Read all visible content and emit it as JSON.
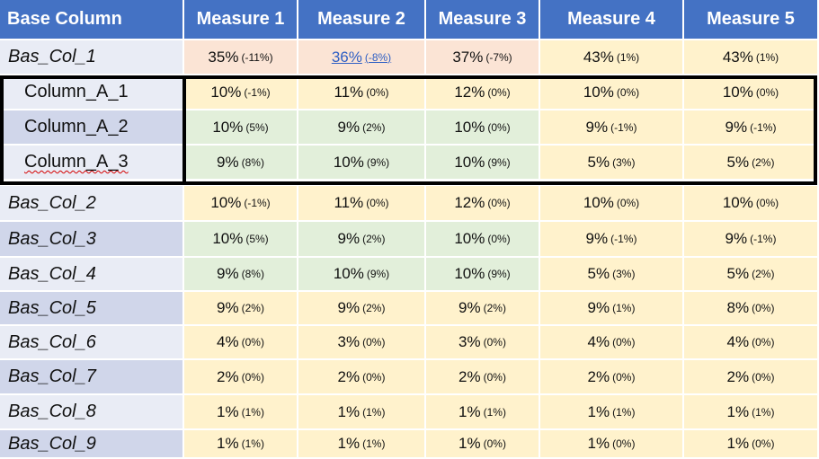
{
  "colors": {
    "header": "#4472c4",
    "label_light": "#e9ecf5",
    "label_dark": "#d0d6ea",
    "cream": "#fff2cc",
    "green": "#e2efda",
    "salmon": "#fbe4d5"
  },
  "headers": [
    "Base Column",
    "Measure 1",
    "Measure 2",
    "Measure 3",
    "Measure 4",
    "Measure 5"
  ],
  "rows": [
    {
      "label": "Bas_Col_1",
      "kind": "label",
      "labelColor": "light",
      "cells": [
        {
          "v": "35%",
          "c": "(-11%)",
          "bg": "salmon"
        },
        {
          "v": "36%",
          "c": "(-8%)",
          "bg": "salmon",
          "link": true
        },
        {
          "v": "37%",
          "c": "(-7%)",
          "bg": "salmon"
        },
        {
          "v": "43%",
          "c": "(1%)",
          "bg": "cream"
        },
        {
          "v": "43%",
          "c": "(1%)",
          "bg": "cream"
        }
      ]
    },
    {
      "label": "Column_A_1",
      "kind": "sub",
      "labelColor": "light",
      "cells": [
        {
          "v": "10%",
          "c": "(-1%)",
          "bg": "cream"
        },
        {
          "v": "11%",
          "c": "(0%)",
          "bg": "cream"
        },
        {
          "v": "12%",
          "c": "(0%)",
          "bg": "cream"
        },
        {
          "v": "10%",
          "c": "(0%)",
          "bg": "cream"
        },
        {
          "v": "10%",
          "c": "(0%)",
          "bg": "cream"
        }
      ]
    },
    {
      "label": "Column_A_2",
      "kind": "sub",
      "labelColor": "dark",
      "cells": [
        {
          "v": "10%",
          "c": "(5%)",
          "bg": "green"
        },
        {
          "v": "9%",
          "c": "(2%)",
          "bg": "green"
        },
        {
          "v": "10%",
          "c": "(0%)",
          "bg": "green"
        },
        {
          "v": "9%",
          "c": "(-1%)",
          "bg": "cream"
        },
        {
          "v": "9%",
          "c": "(-1%)",
          "bg": "cream"
        }
      ]
    },
    {
      "label": "Column_A_3",
      "kind": "sub",
      "labelColor": "light",
      "squiggle": true,
      "cells": [
        {
          "v": "9%",
          "c": "(8%)",
          "bg": "green"
        },
        {
          "v": "10%",
          "c": "(9%)",
          "bg": "green"
        },
        {
          "v": "10%",
          "c": "(9%)",
          "bg": "green"
        },
        {
          "v": "5%",
          "c": "(3%)",
          "bg": "cream"
        },
        {
          "v": "5%",
          "c": "(2%)",
          "bg": "cream"
        }
      ]
    },
    {
      "label": "Bas_Col_2",
      "kind": "label",
      "labelColor": "light",
      "cells": [
        {
          "v": "10%",
          "c": "(-1%)",
          "bg": "cream"
        },
        {
          "v": "11%",
          "c": "(0%)",
          "bg": "cream"
        },
        {
          "v": "12%",
          "c": "(0%)",
          "bg": "cream"
        },
        {
          "v": "10%",
          "c": "(0%)",
          "bg": "cream"
        },
        {
          "v": "10%",
          "c": "(0%)",
          "bg": "cream"
        }
      ]
    },
    {
      "label": "Bas_Col_3",
      "kind": "label",
      "labelColor": "dark",
      "cells": [
        {
          "v": "10%",
          "c": "(5%)",
          "bg": "green"
        },
        {
          "v": "9%",
          "c": "(2%)",
          "bg": "green"
        },
        {
          "v": "10%",
          "c": "(0%)",
          "bg": "green"
        },
        {
          "v": "9%",
          "c": "(-1%)",
          "bg": "cream"
        },
        {
          "v": "9%",
          "c": "(-1%)",
          "bg": "cream"
        }
      ]
    },
    {
      "label": "Bas_Col_4",
      "kind": "label",
      "labelColor": "light",
      "cells": [
        {
          "v": "9%",
          "c": "(8%)",
          "bg": "green"
        },
        {
          "v": "10%",
          "c": "(9%)",
          "bg": "green"
        },
        {
          "v": "10%",
          "c": "(9%)",
          "bg": "green"
        },
        {
          "v": "5%",
          "c": "(3%)",
          "bg": "cream"
        },
        {
          "v": "5%",
          "c": "(2%)",
          "bg": "cream"
        }
      ]
    },
    {
      "label": "Bas_Col_5",
      "kind": "label",
      "labelColor": "dark",
      "cells": [
        {
          "v": "9%",
          "c": "(2%)",
          "bg": "cream"
        },
        {
          "v": "9%",
          "c": "(2%)",
          "bg": "cream"
        },
        {
          "v": "9%",
          "c": "(2%)",
          "bg": "cream"
        },
        {
          "v": "9%",
          "c": "(1%)",
          "bg": "cream"
        },
        {
          "v": "8%",
          "c": "(0%)",
          "bg": "cream"
        }
      ]
    },
    {
      "label": "Bas_Col_6",
      "kind": "label",
      "labelColor": "light",
      "cells": [
        {
          "v": "4%",
          "c": "(0%)",
          "bg": "cream"
        },
        {
          "v": "3%",
          "c": "(0%)",
          "bg": "cream"
        },
        {
          "v": "3%",
          "c": "(0%)",
          "bg": "cream"
        },
        {
          "v": "4%",
          "c": "(0%)",
          "bg": "cream"
        },
        {
          "v": "4%",
          "c": "(0%)",
          "bg": "cream"
        }
      ]
    },
    {
      "label": "Bas_Col_7",
      "kind": "label",
      "labelColor": "dark",
      "cells": [
        {
          "v": "2%",
          "c": "(0%)",
          "bg": "cream"
        },
        {
          "v": "2%",
          "c": "(0%)",
          "bg": "cream"
        },
        {
          "v": "2%",
          "c": "(0%)",
          "bg": "cream"
        },
        {
          "v": "2%",
          "c": "(0%)",
          "bg": "cream"
        },
        {
          "v": "2%",
          "c": "(0%)",
          "bg": "cream"
        }
      ]
    },
    {
      "label": "Bas_Col_8",
      "kind": "label",
      "labelColor": "light",
      "cells": [
        {
          "v": "1%",
          "c": "(1%)",
          "bg": "cream"
        },
        {
          "v": "1%",
          "c": "(1%)",
          "bg": "cream"
        },
        {
          "v": "1%",
          "c": "(1%)",
          "bg": "cream"
        },
        {
          "v": "1%",
          "c": "(1%)",
          "bg": "cream"
        },
        {
          "v": "1%",
          "c": "(1%)",
          "bg": "cream"
        }
      ]
    },
    {
      "label": "Bas_Col_9",
      "kind": "label",
      "labelColor": "dark",
      "cells": [
        {
          "v": "1%",
          "c": "(1%)",
          "bg": "cream"
        },
        {
          "v": "1%",
          "c": "(1%)",
          "bg": "cream"
        },
        {
          "v": "1%",
          "c": "(0%)",
          "bg": "cream"
        },
        {
          "v": "1%",
          "c": "(0%)",
          "bg": "cream"
        },
        {
          "v": "1%",
          "c": "(0%)",
          "bg": "cream"
        }
      ]
    }
  ]
}
